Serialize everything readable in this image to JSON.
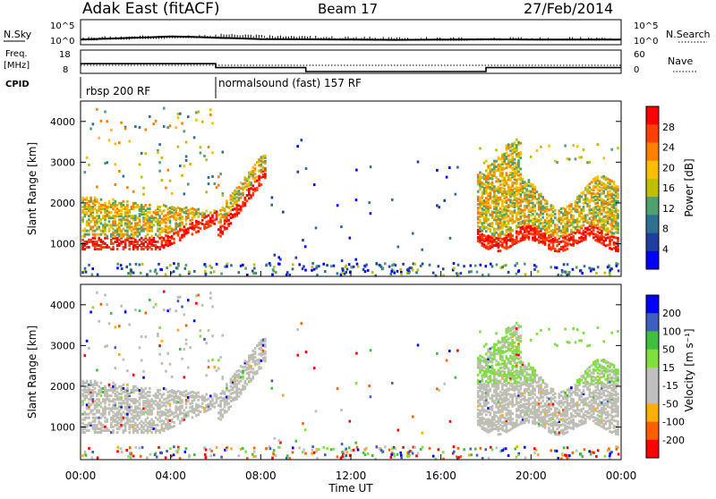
{
  "header": {
    "title": "Adak East (fitACF)",
    "beam": "Beam 17",
    "date": "27/Feb/2014"
  },
  "panels": {
    "nsky_label": "N.Sky",
    "nsearch_label": "N.Search",
    "freq_label_line1": "Freq.",
    "freq_label_line2": "[MHz]",
    "nave_label": "Nave",
    "cpid_label": "CPID",
    "cpid_segments": [
      {
        "label": "rbsp 200 RF",
        "start_hour": 0,
        "end_hour": 6
      },
      {
        "label": "normalsound (fast) 157 RF",
        "start_hour": 6,
        "end_hour": 24
      }
    ],
    "noise_left_ticks": [
      "10^5",
      "10^0"
    ],
    "noise_right_ticks": [
      "10^5",
      "10^0"
    ],
    "freq_left_ticks": [
      "18",
      "8"
    ],
    "freq_right_ticks": [
      "60",
      "0"
    ]
  },
  "colors": {
    "power_scale": [
      "#0000ff",
      "#1f3f9f",
      "#2f6f8f",
      "#4f9f6f",
      "#bfbf00",
      "#ffbf00",
      "#ff7f00",
      "#ff3f00",
      "#ff0000"
    ],
    "velocity_scale": [
      "#ff0000",
      "#ff5f00",
      "#ffaf00",
      "#bfbfbf",
      "#bfbfbf",
      "#7fdf3f",
      "#3fbf3f",
      "#3f5fbf",
      "#0000ff"
    ],
    "ground_scatter": "#bebeb4"
  },
  "chart_data": [
    {
      "type": "line",
      "panel": "noise",
      "series": [
        {
          "values_note": "",
          "x": [
            0,
            1,
            2,
            3,
            4,
            5,
            6,
            7,
            8,
            10,
            12,
            14,
            16,
            18,
            20,
            22,
            24
          ],
          "values": [
            8,
            12,
            18,
            25,
            40,
            30,
            20,
            15,
            10,
            9,
            8,
            7,
            8,
            9,
            8,
            8,
            8
          ]
        }
      ],
      "xlim": [
        0,
        24
      ],
      "ylim_log10": [
        0,
        5
      ]
    },
    {
      "type": "line",
      "panel": "frequency",
      "series": [
        {
          "name": "",
          "x": [
            0,
            6,
            6,
            10,
            10,
            18,
            18,
            24
          ],
          "values": [
            12,
            12,
            10,
            10,
            8,
            8,
            10,
            10
          ]
        }
      ],
      "xlim": [
        0,
        24
      ],
      "ylim": [
        8,
        18
      ]
    },
    {
      "type": "heatmap",
      "panel": "power",
      "ylabel": "Slant Range [km]",
      "colorbar_label": "Power [dB]",
      "colorbar_ticks": [
        "28",
        "24",
        "20",
        "16",
        "12",
        "8",
        "4"
      ],
      "y_ticks": [
        "4000",
        "3000",
        "2000",
        "1000"
      ],
      "ylim": [
        200,
        4500
      ],
      "xlim": [
        0,
        24
      ]
    },
    {
      "type": "heatmap",
      "panel": "velocity",
      "ylabel": "Slant Range [km]",
      "colorbar_label": "Velocity [m s⁻¹]",
      "colorbar_ticks": [
        "200",
        "100",
        "50",
        "15",
        "-15",
        "-50",
        "-100",
        "-200"
      ],
      "y_ticks": [
        "4000",
        "3000",
        "2000",
        "1000"
      ],
      "ylim": [
        200,
        4500
      ],
      "xlim": [
        0,
        24
      ]
    }
  ],
  "x_axis": {
    "ticks": [
      "00:00",
      "04:00",
      "08:00",
      "12:00",
      "16:00",
      "20:00",
      "00:00"
    ],
    "label": "Time UT"
  }
}
